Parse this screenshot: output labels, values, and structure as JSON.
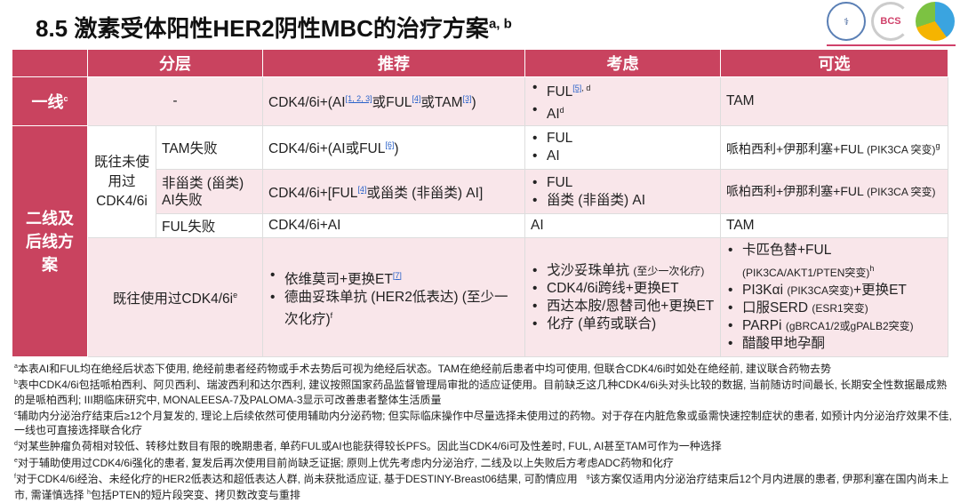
{
  "title": {
    "text": "8.5 激素受体阳性HER2阴性MBC的治疗方案",
    "sup": "a, b"
  },
  "logos": [
    "CACA",
    "BCS",
    "CSCO"
  ],
  "headers": [
    "分层",
    "推荐",
    "考虑",
    "可选"
  ],
  "row1": {
    "label": "一线",
    "label_sup": "c",
    "strata": "-",
    "rec": {
      "a": "CDK4/6i+(AI",
      "r1": "[1, 2, 3]",
      "b": "或FUL",
      "r2": "[4]",
      "c": "或TAM",
      "r3": "[3]",
      "d": ")"
    },
    "consider": [
      {
        "t": "FUL",
        "ref": "[5]",
        "sup": ", d"
      },
      {
        "t": "AI",
        "sup": "d"
      }
    ],
    "optional": "TAM"
  },
  "second_label": "二线及后线方案",
  "group_label": "既往未使用过CDK4/6i",
  "row2": {
    "strata": "TAM失败",
    "rec": {
      "a": "CDK4/6i+(AI或FUL",
      "r": "[6]",
      "b": ")"
    },
    "consider": [
      "FUL",
      "AI"
    ],
    "optional": {
      "t": "哌柏西利+伊那利塞+FUL",
      "sm": "(PIK3CA 突变)",
      "sup": "g"
    }
  },
  "row3": {
    "strata": "非甾类 (甾类) AI失败",
    "rec": {
      "a": "CDK4/6i+[FUL",
      "r": "[4]",
      "b": "或甾类 (非甾类) AI]"
    },
    "consider": [
      "FUL",
      "甾类 (非甾类) AI"
    ],
    "optional": {
      "t": "哌柏西利+伊那利塞+FUL",
      "sm": "(PIK3CA 突变)"
    }
  },
  "row4": {
    "strata": "FUL失败",
    "rec": "CDK4/6i+AI",
    "consider": "AI",
    "optional": "TAM"
  },
  "row5": {
    "strata": "既往使用过CDK4/6i",
    "strata_sup": "e",
    "rec": [
      {
        "t": "依维莫司+更换ET",
        "ref": "[7]"
      },
      {
        "t": "德曲妥珠单抗 (HER2低表达) (至少一次化疗)",
        "sup": "f"
      }
    ],
    "consider": [
      {
        "t": "戈沙妥珠单抗",
        "sm": "(至少一次化疗)"
      },
      {
        "t": "CDK4/6i跨线+更换ET"
      },
      {
        "t": "西达本胺/恩替司他+更换ET"
      },
      {
        "t": "化疗 (单药或联合)"
      }
    ],
    "optional": [
      {
        "t": "卡匹色替+FUL",
        "sm": "(PIK3CA/AKT1/PTEN突变)",
        "sup": "h"
      },
      {
        "t": "PI3Kαi",
        "sm": "(PIK3CA突变)",
        "t2": "+更换ET"
      },
      {
        "t": "口服SERD",
        "sm": "(ESR1突变)"
      },
      {
        "t": "PARPi",
        "sm": "(gBRCA1/2或gPALB2突变)"
      },
      {
        "t": "醋酸甲地孕酮"
      }
    ]
  },
  "footnotes": [
    {
      "m": "a",
      "t": "本表AI和FUL均在绝经后状态下使用, 绝经前患者经药物或手术去势后可视为绝经后状态。TAM在绝经前后患者中均可使用, 但联合CDK4/6i时如处在绝经前, 建议联合药物去势"
    },
    {
      "m": "b",
      "t": "表中CDK4/6i包括哌柏西利、阿贝西利、瑞波西利和达尔西利, 建议按照国家药品监督管理局审批的适应证使用。目前缺乏这几种CDK4/6i头对头比较的数据, 当前随访时间最长, 长期安全性数据最成熟的是哌柏西利; III期临床研究中, MONALEESA-7及PALOMA-3显示可改善患者整体生活质量"
    },
    {
      "m": "c",
      "t": "辅助内分泌治疗结束后≥12个月复发的, 理论上后续依然可使用辅助内分泌药物; 但实际临床操作中尽量选择未使用过的药物。对于存在内脏危象或亟需快速控制症状的患者, 如预计内分泌治疗效果不佳, 一线也可直接选择联合化疗"
    },
    {
      "m": "d",
      "t": "对某些肿瘤负荷相对较低、转移灶数目有限的晚期患者, 单药FUL或AI也能获得较长PFS。因此当CDK4/6i可及性差时, FUL, AI甚至TAM可作为一种选择"
    },
    {
      "m": "e",
      "t": "对于辅助使用过CDK4/6i强化的患者, 复发后再次使用目前尚缺乏证据; 原则上优先考虑内分泌治疗, 二线及以上失败后方考虑ADC药物和化疗"
    },
    {
      "m": "f",
      "t": "对于CDK4/6i经治、未经化疗的HER2低表达和超低表达人群, 尚未获批适应证, 基于DESTINY-Breast06结果, 可酌情应用",
      "m2": "g",
      "t2": "该方案仅适用内分泌治疗结束后12个月内进展的患者, 伊那利塞在国内尚未上市, 需谨慎选择",
      "m3": "h",
      "t3": "包括PTEN的短片段突变、拷贝数改变与重排"
    }
  ]
}
